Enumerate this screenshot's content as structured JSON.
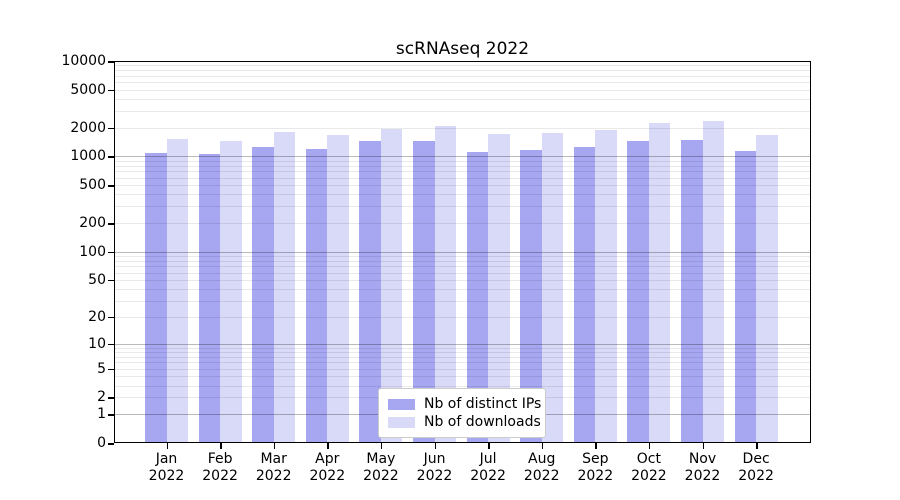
{
  "title": "scRNAseq 2022",
  "colors": {
    "ips_bar": "#a6a6f1",
    "downloads_bar": "#d9d9f8",
    "grid_minor": "rgba(0,0,0,0.085)",
    "grid_major": "rgba(0,0,0,0.27)",
    "axis_frame": "#000000",
    "legend_border": "#cccccc"
  },
  "legend": {
    "items": [
      {
        "label": "Nb of distinct IPs",
        "color_key": "ips_bar"
      },
      {
        "label": "Nb of downloads",
        "color_key": "downloads_bar"
      }
    ]
  },
  "y_axis": {
    "ticks": [
      0,
      1,
      2,
      5,
      10,
      20,
      50,
      100,
      200,
      500,
      1000,
      2000,
      5000,
      10000
    ],
    "tick_labels": [
      "0",
      "1",
      "2",
      "5",
      "10",
      "20",
      "50",
      "100",
      "200",
      "500",
      "1000",
      "2000",
      "5000",
      "10000"
    ],
    "scale": "log10(1+value)",
    "max": 10000
  },
  "x_axis": {
    "months": [
      "Jan",
      "Feb",
      "Mar",
      "Apr",
      "May",
      "Jun",
      "Jul",
      "Aug",
      "Sep",
      "Oct",
      "Nov",
      "Dec"
    ],
    "year": "2022"
  },
  "chart_data": {
    "type": "bar",
    "title": "scRNAseq 2022",
    "categories": [
      "Jan 2022",
      "Feb 2022",
      "Mar 2022",
      "Apr 2022",
      "May 2022",
      "Jun 2022",
      "Jul 2022",
      "Aug 2022",
      "Sep 2022",
      "Oct 2022",
      "Nov 2022",
      "Dec 2022"
    ],
    "series": [
      {
        "name": "Nb of distinct IPs",
        "values": [
          1090,
          1050,
          1260,
          1190,
          1440,
          1460,
          1120,
          1170,
          1270,
          1440,
          1500,
          1150
        ]
      },
      {
        "name": "Nb of downloads",
        "values": [
          1530,
          1450,
          1790,
          1690,
          1960,
          2070,
          1720,
          1780,
          1880,
          2230,
          2370,
          1690
        ]
      }
    ],
    "ylim": [
      0,
      10000
    ],
    "yscale": "log1p",
    "y_ticks": [
      0,
      1,
      2,
      5,
      10,
      20,
      50,
      100,
      200,
      500,
      1000,
      2000,
      5000,
      10000
    ],
    "grid": "horizontal, minor 2-9 per decade, major at powers of 10",
    "legend_position": "lower center"
  }
}
